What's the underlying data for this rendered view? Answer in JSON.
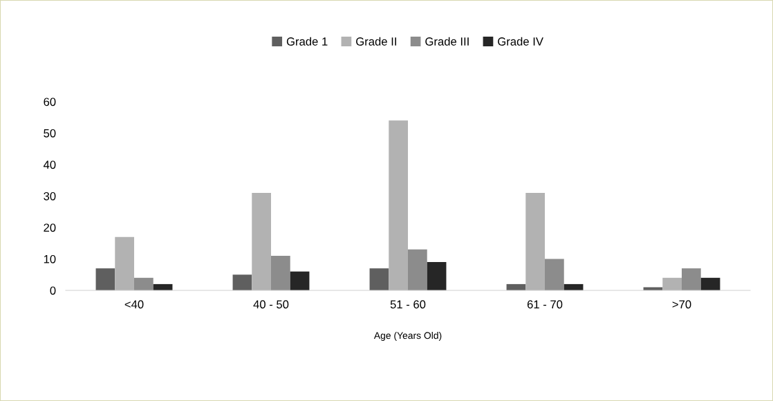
{
  "chart_data": {
    "type": "bar",
    "xlabel": "Age (Years Old)",
    "categories": [
      "<40",
      "40 - 50",
      "51 - 60",
      "61 - 70",
      ">70"
    ],
    "series": [
      {
        "name": "Grade 1",
        "color": "#5f5f5f",
        "values": [
          7,
          5,
          7,
          2,
          1
        ]
      },
      {
        "name": "Grade II",
        "color": "#b2b2b2",
        "values": [
          17,
          31,
          54,
          31,
          4
        ]
      },
      {
        "name": "Grade III",
        "color": "#8c8c8c",
        "values": [
          4,
          11,
          13,
          10,
          7
        ]
      },
      {
        "name": "Grade IV",
        "color": "#262626",
        "values": [
          2,
          6,
          9,
          2,
          4
        ]
      }
    ],
    "ylim": [
      0,
      60
    ],
    "yticks": [
      0,
      10,
      20,
      30,
      40,
      50,
      60
    ],
    "grid": false,
    "legend": "top"
  }
}
